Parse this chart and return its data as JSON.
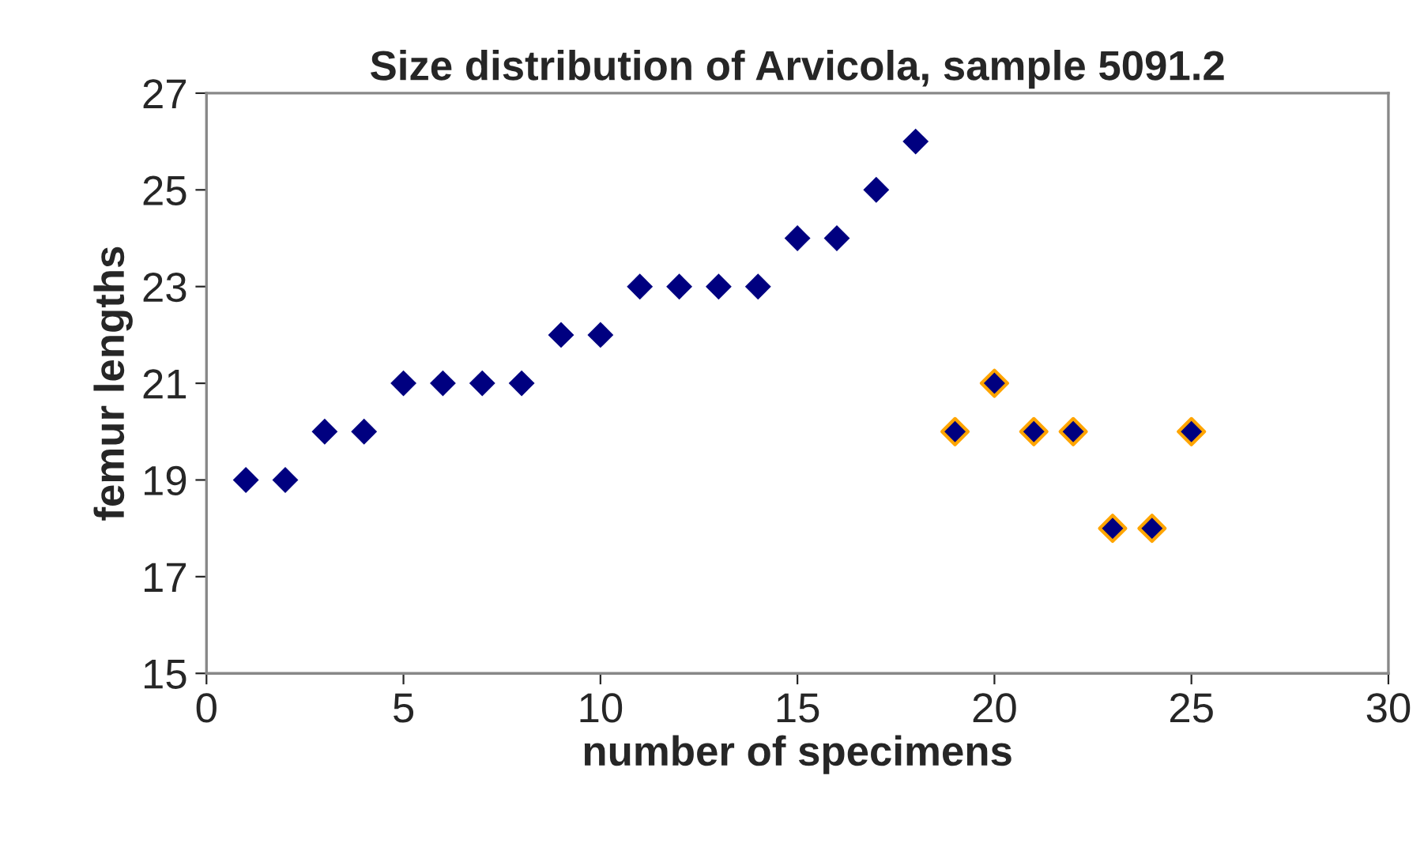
{
  "chart_data": {
    "type": "scatter",
    "title": "Size distribution of Arvicola, sample 5091.2",
    "xlabel": "number of specimens",
    "ylabel": "femur lengths",
    "series": [
      {
        "color": "#000080",
        "x": [
          1,
          2,
          3,
          4,
          5,
          6,
          7,
          8,
          9,
          10,
          11,
          12,
          13,
          14,
          15,
          16,
          17,
          18
        ],
        "values": [
          19,
          19,
          20,
          20,
          21,
          21,
          21,
          21,
          22,
          22,
          23,
          23,
          23,
          23,
          24,
          24,
          25,
          26
        ]
      },
      {
        "color": "#ffa500",
        "x": [
          19,
          20,
          21,
          22,
          23,
          24,
          25
        ],
        "values": [
          20,
          21,
          20,
          20,
          18,
          18,
          20
        ]
      }
    ],
    "xlim": [
      0,
      30
    ],
    "xticks": [
      0,
      5,
      10,
      15,
      20,
      25,
      30
    ],
    "ylim": [
      15,
      27
    ],
    "yticks": [
      15,
      17,
      19,
      21,
      23,
      25,
      27
    ],
    "marker": "diamond",
    "grid": false,
    "legend": false
  }
}
